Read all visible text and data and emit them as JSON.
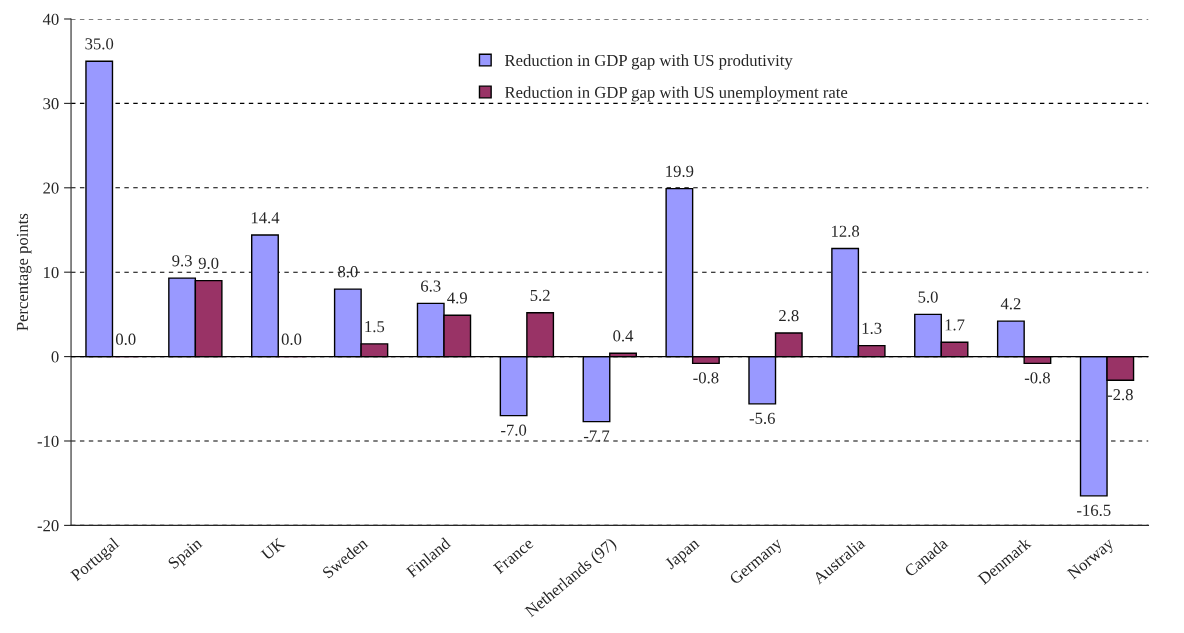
{
  "chart_data": {
    "type": "bar",
    "ylabel": "Percentage points",
    "categories": [
      "Portugal",
      "Spain",
      "UK",
      "Sweden",
      "Finland",
      "France",
      "Netherlands (97)",
      "Japan",
      "Germany",
      "Australia",
      "Canada",
      "Denmark",
      "Norway"
    ],
    "series": [
      {
        "name": "Reduction in GDP gap with US produtivity",
        "color": "#9999ff",
        "values": [
          35.0,
          9.3,
          14.4,
          8.0,
          6.3,
          -7.0,
          -7.7,
          19.9,
          -5.6,
          12.8,
          5.0,
          4.2,
          -16.5
        ],
        "value_labels": [
          "35.0",
          "9.3",
          "14.4",
          "8.0",
          "6.3",
          "-7.0",
          "-7.7",
          "19.9",
          "-5.6",
          "12.8",
          "5.0",
          "4.2",
          "-16.5"
        ]
      },
      {
        "name": "Reduction in GDP gap with US unemployment rate",
        "color": "#993366",
        "values": [
          0.0,
          9.0,
          0.0,
          1.5,
          4.9,
          5.2,
          0.4,
          -0.8,
          2.8,
          1.3,
          1.7,
          -0.8,
          -2.8
        ],
        "value_labels": [
          "0.0",
          "9.0",
          "0.0",
          "1.5",
          "4.9",
          "5.2",
          "0.4",
          "-0.8",
          "2.8",
          "1.3",
          "1.7",
          "-0.8",
          "-2.8"
        ]
      }
    ],
    "ylim": [
      -20,
      40
    ],
    "yticks": [
      -20,
      -10,
      0,
      10,
      20,
      30,
      40
    ],
    "grid": "y",
    "legend": "top"
  }
}
